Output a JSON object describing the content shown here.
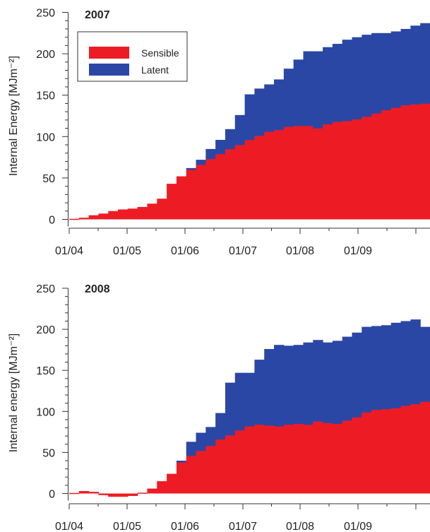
{
  "chart_data": [
    {
      "type": "area",
      "step": true,
      "stacked": true,
      "title": "2007",
      "ylabel": "Internal Energy [MJm⁻²]",
      "xlabel": "",
      "ylim": [
        0,
        250
      ],
      "yticks": [
        0,
        50,
        100,
        150,
        200,
        250
      ],
      "xticks": [
        "01/04",
        "01/05",
        "01/06",
        "01/07",
        "01/08",
        "01/09"
      ],
      "legend": {
        "placement": "top-left",
        "entries": [
          "Sensible",
          "Latent"
        ]
      },
      "x_start": "01/04",
      "x_end": "01/10",
      "weeks": 37,
      "series": [
        {
          "name": "Sensible",
          "color": "#ed1c24",
          "values": [
            0,
            2,
            5,
            7,
            10,
            12,
            13,
            15,
            19,
            25,
            43,
            52,
            60,
            66,
            73,
            79,
            85,
            90,
            96,
            101,
            106,
            108,
            112,
            113,
            113,
            110,
            115,
            118,
            119,
            121,
            124,
            128,
            132,
            135,
            138,
            139,
            140
          ]
        },
        {
          "name": "Latent",
          "color": "#2a47a5",
          "values": [
            0,
            0,
            0,
            0,
            0,
            0,
            0,
            0,
            0,
            0,
            0,
            0,
            2,
            6,
            12,
            17,
            24,
            36,
            55,
            57,
            57,
            61,
            70,
            80,
            90,
            93,
            93,
            94,
            98,
            99,
            99,
            97,
            93,
            92,
            92,
            95,
            97
          ]
        }
      ]
    },
    {
      "type": "area",
      "step": true,
      "stacked": true,
      "title": "2008",
      "ylabel": "Internal energy [MJm⁻²]",
      "xlabel": "",
      "ylim": [
        -5,
        250
      ],
      "yticks": [
        0,
        50,
        100,
        150,
        200,
        250
      ],
      "xticks": [
        "01/04",
        "01/05",
        "01/06",
        "01/07",
        "01/08",
        "01/09"
      ],
      "x_start": "01/04",
      "x_end": "01/10",
      "weeks": 37,
      "series": [
        {
          "name": "Sensible",
          "color": "#ed1c24",
          "values": [
            0,
            3,
            2,
            -2,
            -4,
            -4,
            -3,
            1,
            6,
            15,
            24,
            38,
            46,
            52,
            58,
            66,
            71,
            77,
            82,
            84,
            83,
            82,
            84,
            85,
            84,
            88,
            86,
            85,
            89,
            93,
            99,
            102,
            103,
            104,
            107,
            109,
            112
          ]
        },
        {
          "name": "Latent",
          "color": "#2a47a5",
          "values": [
            0,
            0,
            0,
            0,
            0,
            0,
            0,
            0,
            0,
            0,
            0,
            2,
            17,
            22,
            23,
            32,
            64,
            70,
            65,
            79,
            93,
            99,
            96,
            96,
            100,
            99,
            98,
            101,
            102,
            103,
            104,
            102,
            102,
            104,
            103,
            103,
            91
          ]
        }
      ]
    }
  ]
}
